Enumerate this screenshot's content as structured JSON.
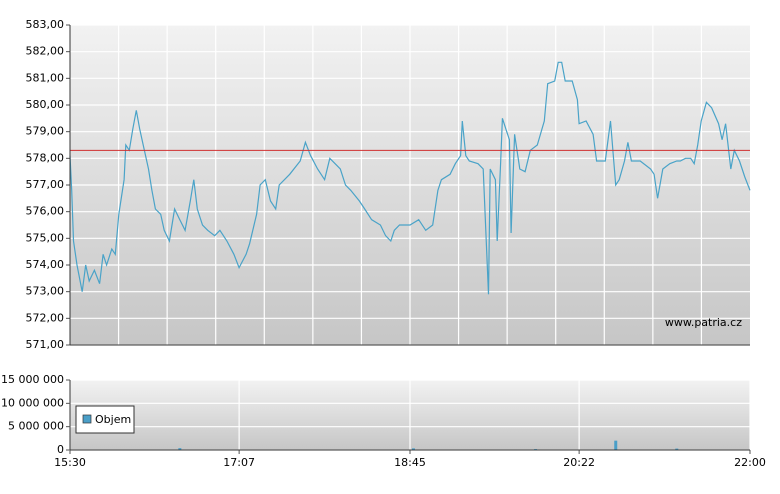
{
  "chart_data": [
    {
      "type": "line",
      "color": "#4aa3c8",
      "watermark": "www.patria.cz",
      "reference_line": 578.3,
      "reference_color": "#d03030",
      "xlim": [
        "15:30",
        "22:00"
      ],
      "ylim": [
        571,
        583
      ],
      "yticks": [
        {
          "value": 571,
          "label": "571,00"
        },
        {
          "value": 572,
          "label": "572,00"
        },
        {
          "value": 573,
          "label": "573,00"
        },
        {
          "value": 574,
          "label": "574,00"
        },
        {
          "value": 575,
          "label": "575,00"
        },
        {
          "value": 576,
          "label": "576,00"
        },
        {
          "value": 577,
          "label": "577,00"
        },
        {
          "value": 578,
          "label": "578,00"
        },
        {
          "value": 579,
          "label": "579,00"
        },
        {
          "value": 580,
          "label": "580,00"
        },
        {
          "value": 581,
          "label": "581,00"
        },
        {
          "value": 582,
          "label": "582,00"
        },
        {
          "value": 583,
          "label": "583,00"
        }
      ],
      "x": [
        "15:30",
        "15:31",
        "15:32",
        "15:34",
        "15:37",
        "15:39",
        "15:41",
        "15:44",
        "15:47",
        "15:49",
        "15:51",
        "15:54",
        "15:56",
        "15:58",
        "16:01",
        "16:02",
        "16:04",
        "16:06",
        "16:08",
        "16:10",
        "16:12",
        "16:15",
        "16:17",
        "16:19",
        "16:22",
        "16:24",
        "16:27",
        "16:30",
        "16:33",
        "16:36",
        "16:39",
        "16:41",
        "16:43",
        "16:46",
        "16:49",
        "16:53",
        "16:56",
        "17:00",
        "17:04",
        "17:07",
        "17:11",
        "17:13",
        "17:17",
        "17:19",
        "17:22",
        "17:25",
        "17:28",
        "17:30",
        "17:36",
        "17:42",
        "17:45",
        "17:48",
        "17:52",
        "17:56",
        "17:59",
        "18:05",
        "18:08",
        "18:11",
        "18:16",
        "18:19",
        "18:23",
        "18:28",
        "18:31",
        "18:34",
        "18:36",
        "18:39",
        "18:45",
        "18:50",
        "18:54",
        "18:58",
        "19:01",
        "19:03",
        "19:08",
        "19:11",
        "19:14",
        "19:15",
        "19:17",
        "19:19",
        "19:24",
        "19:27",
        "19:30",
        "19:31",
        "19:34",
        "19:35",
        "19:37",
        "19:38",
        "19:41",
        "19:42",
        "19:43",
        "19:45",
        "19:48",
        "19:51",
        "19:54",
        "19:58",
        "20:02",
        "20:04",
        "20:08",
        "20:10",
        "20:12",
        "20:14",
        "20:18",
        "20:21",
        "20:22",
        "20:26",
        "20:30",
        "20:32",
        "20:37",
        "20:40",
        "20:43",
        "20:45",
        "20:48",
        "20:50",
        "20:52",
        "20:57",
        "21:03",
        "21:05",
        "21:07",
        "21:10",
        "21:14",
        "21:18",
        "21:20",
        "21:23",
        "21:26",
        "21:28",
        "21:30",
        "21:32",
        "21:35",
        "21:38",
        "21:42",
        "21:44",
        "21:46",
        "21:49",
        "21:51",
        "21:54",
        "21:57",
        "22:00"
      ],
      "values": [
        578.1,
        576.8,
        574.9,
        574.0,
        573.0,
        574.0,
        573.4,
        573.8,
        573.3,
        574.4,
        574.0,
        574.6,
        574.4,
        575.9,
        577.2,
        578.5,
        578.3,
        579.1,
        579.8,
        579.1,
        578.5,
        577.6,
        576.8,
        576.1,
        575.9,
        575.3,
        574.9,
        576.1,
        575.7,
        575.3,
        576.4,
        577.2,
        576.1,
        575.5,
        575.3,
        575.1,
        575.3,
        574.9,
        574.4,
        573.9,
        574.4,
        574.8,
        575.9,
        577.0,
        577.2,
        576.4,
        576.1,
        577.0,
        577.4,
        577.9,
        578.6,
        578.1,
        577.6,
        577.2,
        578.0,
        577.6,
        577.0,
        576.8,
        576.4,
        576.1,
        575.7,
        575.5,
        575.1,
        574.9,
        575.3,
        575.5,
        575.5,
        575.7,
        575.3,
        575.5,
        576.8,
        577.2,
        577.4,
        577.8,
        578.1,
        579.4,
        578.1,
        577.9,
        577.8,
        577.6,
        572.9,
        577.6,
        577.2,
        574.9,
        577.9,
        579.5,
        578.9,
        578.7,
        575.2,
        578.9,
        577.6,
        577.5,
        578.3,
        578.5,
        579.4,
        580.8,
        580.9,
        581.6,
        581.6,
        580.9,
        580.9,
        580.2,
        579.3,
        579.4,
        578.9,
        577.9,
        577.9,
        579.4,
        577.0,
        577.2,
        577.9,
        578.6,
        577.9,
        577.9,
        577.6,
        577.4,
        576.5,
        577.6,
        577.8,
        577.9,
        577.9,
        578.0,
        578.0,
        577.8,
        578.5,
        579.4,
        580.1,
        579.9,
        579.3,
        578.7,
        579.3,
        577.6,
        578.3,
        577.9,
        577.3,
        576.8
      ]
    },
    {
      "type": "bar",
      "legend": "upper left",
      "xlim": [
        "15:30",
        "22:00"
      ],
      "ylim": [
        0,
        15000000
      ],
      "xticks": [
        "15:30",
        "17:07",
        "18:45",
        "20:22",
        "22:00"
      ],
      "yticks": [
        0,
        {
          "value": 5000000,
          "label": "5 000 000"
        },
        {
          "value": 10000000,
          "label": "10 000 000"
        },
        {
          "value": 15000000,
          "label": "15 000 000"
        }
      ],
      "x": [
        "16:33",
        "18:47",
        "19:57",
        "20:43",
        "21:18"
      ],
      "series": [
        {
          "name": "Objem",
          "color": "#4a9fc8",
          "values": [
            400000,
            350000,
            200000,
            2000000,
            300000
          ]
        }
      ]
    }
  ]
}
